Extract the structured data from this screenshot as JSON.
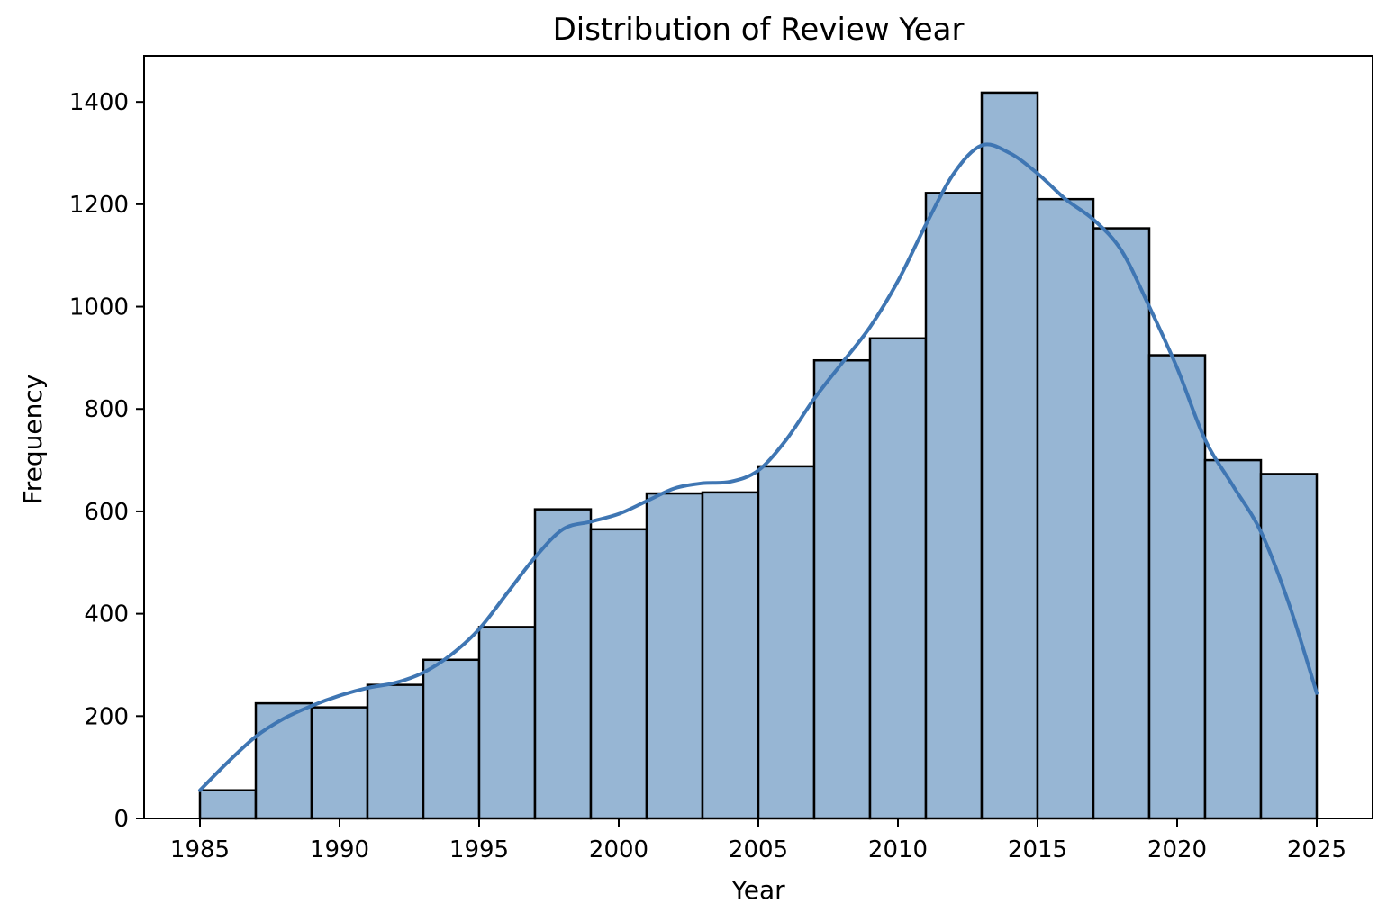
{
  "chart_data": {
    "type": "bar",
    "title": "Distribution of Review Year",
    "xlabel": "Year",
    "ylabel": "Frequency",
    "xlim": [
      1983,
      2027
    ],
    "ylim": [
      0,
      1490
    ],
    "x_ticks": [
      1985,
      1990,
      1995,
      2000,
      2005,
      2010,
      2015,
      2020,
      2025
    ],
    "y_ticks": [
      0,
      200,
      400,
      600,
      800,
      1000,
      1200,
      1400
    ],
    "bin_edges": [
      1985,
      1987,
      1989,
      1991,
      1993,
      1995,
      1997,
      1999,
      2001,
      2003,
      2005,
      2007,
      2009,
      2011,
      2013,
      2015,
      2017,
      2019,
      2021,
      2023,
      2025
    ],
    "values": [
      55,
      225,
      217,
      261,
      310,
      374,
      604,
      565,
      635,
      637,
      688,
      895,
      938,
      1222,
      1418,
      1210,
      1153,
      905,
      700,
      673
    ],
    "kde": {
      "x": [
        1985,
        1986,
        1987,
        1988,
        1989,
        1990,
        1991,
        1992,
        1993,
        1994,
        1995,
        1996,
        1997,
        1998,
        1999,
        2000,
        2001,
        2002,
        2003,
        2004,
        2005,
        2006,
        2007,
        2008,
        2009,
        2010,
        2011,
        2012,
        2013,
        2014,
        2015,
        2016,
        2017,
        2018,
        2019,
        2020,
        2021,
        2022,
        2023,
        2024,
        2025
      ],
      "y": [
        55,
        110,
        160,
        195,
        220,
        240,
        255,
        265,
        285,
        320,
        370,
        440,
        510,
        565,
        580,
        595,
        620,
        645,
        655,
        658,
        680,
        740,
        820,
        890,
        960,
        1050,
        1160,
        1260,
        1315,
        1300,
        1260,
        1210,
        1170,
        1110,
        1000,
        880,
        740,
        650,
        560,
        420,
        245
      ]
    },
    "colors": {
      "bar_fill": "#97b6d4",
      "bar_edge": "#000000",
      "kde_line": "#3f76b3"
    },
    "grid": false,
    "legend": "none"
  }
}
